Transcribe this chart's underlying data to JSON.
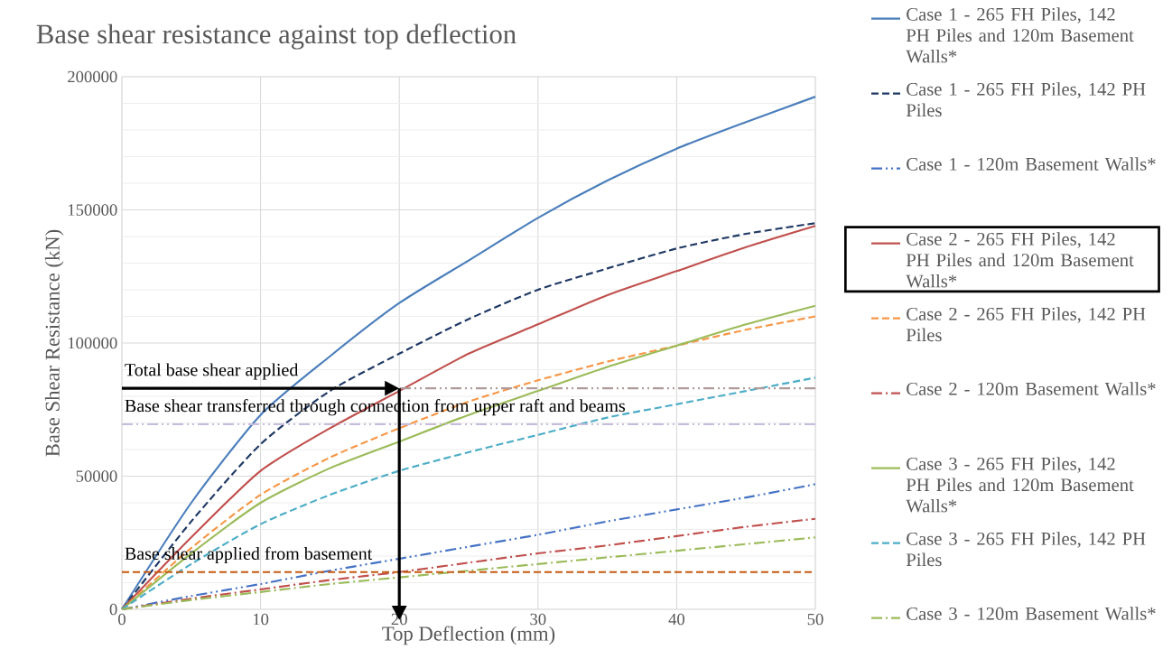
{
  "chart_data": {
    "type": "line",
    "title": "Base shear resistance against top deflection",
    "xlabel": "Top Deflection (mm)",
    "ylabel": "Base Shear Resistance (kN)",
    "x": [
      0,
      5,
      10,
      15,
      20,
      25,
      30,
      35,
      40,
      45,
      50
    ],
    "xlim": [
      0,
      50
    ],
    "xticks": [
      0,
      10,
      20,
      30,
      40,
      50
    ],
    "ylim": [
      0,
      200000
    ],
    "yticks": [
      0,
      50000,
      100000,
      150000,
      200000
    ],
    "grid": true,
    "legend": "right",
    "marker": "none",
    "series": [
      {
        "name": "Case 1 - 265 FH Piles, 142 PH Piles and 120m Basement Walls*",
        "color": "#4a7ebb",
        "line_style": "solid",
        "values": [
          0,
          40000,
          73000,
          95000,
          115000,
          131000,
          147000,
          161000,
          173000,
          183000,
          192500
        ]
      },
      {
        "name": "Case 1 - 265 FH Piles, 142 PH Piles",
        "color": "#1f3864",
        "line_style": "dashed",
        "values": [
          0,
          33000,
          62000,
          82000,
          96000,
          109000,
          120000,
          128000,
          135500,
          141000,
          145000
        ]
      },
      {
        "name": "Case 1 - 120m Basement Walls*",
        "color": "#4472c4",
        "line_style": "dashdotdot",
        "values": [
          0,
          5000,
          9500,
          14500,
          19000,
          23500,
          28000,
          33000,
          37500,
          42000,
          47000
        ]
      },
      {
        "name": "Case 2 - 265 FH Piles, 142 PH Piles and 120m Basement Walls*",
        "color": "#c0504d",
        "line_style": "solid",
        "values": [
          0,
          27000,
          52000,
          68000,
          82000,
          96000,
          107000,
          118000,
          127000,
          136000,
          144000
        ]
      },
      {
        "name": "Case 2 - 265 FH Piles, 142 PH Piles",
        "color": "#f79646",
        "line_style": "dashed",
        "values": [
          0,
          23000,
          43000,
          57000,
          68000,
          78000,
          86000,
          93000,
          99000,
          105000,
          110000
        ]
      },
      {
        "name": "Case 2 - 120m Basement Walls*",
        "color": "#c0504d",
        "line_style": "dashdot",
        "values": [
          0,
          4000,
          7500,
          11000,
          14000,
          17500,
          21000,
          24000,
          27500,
          31000,
          34000
        ]
      },
      {
        "name": "Case 3 - 265 FH Piles, 142 PH Piles and 120m Basement Walls*",
        "color": "#9bbb59",
        "line_style": "solid",
        "values": [
          0,
          21000,
          40000,
          53000,
          63000,
          73000,
          82000,
          91000,
          99000,
          107000,
          114000
        ]
      },
      {
        "name": "Case 3 - 265 FH Piles, 142 PH Piles",
        "color": "#4bacc6",
        "line_style": "dashed",
        "values": [
          0,
          17000,
          32000,
          43000,
          52000,
          59000,
          65500,
          72000,
          77000,
          82000,
          87000
        ]
      },
      {
        "name": "Case 3 - 120m Basement Walls*",
        "color": "#9bbb59",
        "line_style": "dashdot",
        "values": [
          0,
          3500,
          6500,
          9500,
          12000,
          14500,
          17000,
          19500,
          22000,
          24500,
          27000
        ]
      }
    ],
    "ref_lines": [
      {
        "axis": "y",
        "value": 83000,
        "label": "Total base shear applied",
        "color": "#b09a9a",
        "line_style": "dashdotdot"
      },
      {
        "axis": "y",
        "value": 69500,
        "label": "Base shear transferred through connection from upper raft and beams",
        "color": "#c8bcdc",
        "line_style": "dashdotdot"
      },
      {
        "axis": "y",
        "value": 14000,
        "label": "Base shear applied from basement",
        "color": "#c55a11",
        "line_style": "dashed"
      }
    ]
  }
}
